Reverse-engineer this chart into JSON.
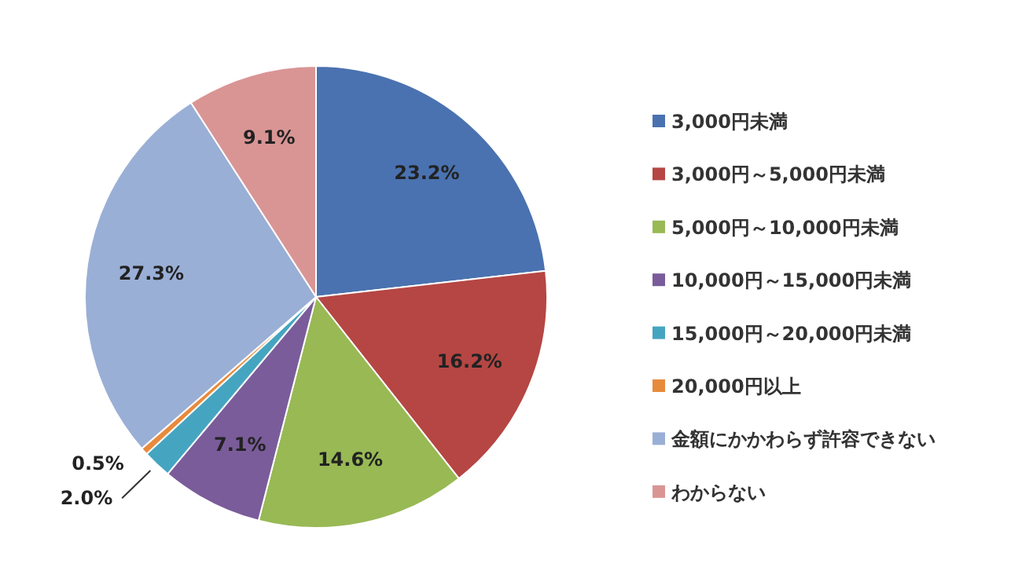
{
  "chart_data": {
    "type": "pie",
    "categories": [
      "3,000円未満",
      "3,000円～5,000円未満",
      "5,000円～10,000円未満",
      "10,000円～15,000円未満",
      "15,000円～20,000円未満",
      "20,000円以上",
      "金額にかかわらず許容できない",
      "わからない"
    ],
    "values": [
      23.2,
      16.2,
      14.6,
      7.1,
      2.0,
      0.5,
      27.3,
      9.1
    ],
    "colors": [
      "#4a72b0",
      "#b54643",
      "#98b954",
      "#7a5c9a",
      "#45a5c0",
      "#e88a3c",
      "#9aafd6",
      "#d99594"
    ],
    "value_labels": [
      "23.2%",
      "16.2%",
      "14.6%",
      "7.1%",
      "2.0%",
      "0.5%",
      "27.3%",
      "9.1%"
    ],
    "legend": "right"
  }
}
